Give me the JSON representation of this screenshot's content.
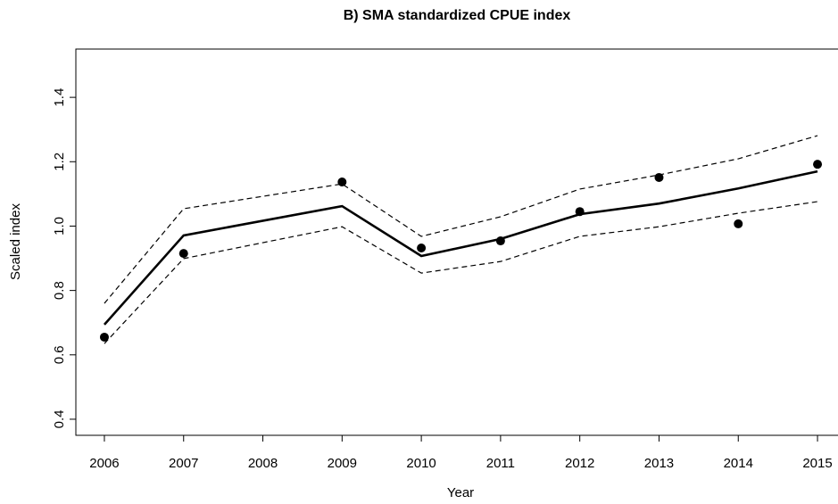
{
  "chart_data": {
    "type": "line",
    "title": "B) SMA standardized CPUE index",
    "x_label": "Year",
    "y_label": "Scaled index",
    "x": [
      2006,
      2007,
      2009,
      2010,
      2011,
      2012,
      2013,
      2014,
      2015
    ],
    "series": [
      {
        "style": "points",
        "color": "#000000",
        "values": [
          0.655,
          0.915,
          1.137,
          0.932,
          0.954,
          1.045,
          1.151,
          1.007,
          1.192
        ]
      },
      {
        "style": "solid",
        "color": "#000000",
        "values": [
          0.694,
          0.971,
          1.062,
          0.907,
          0.96,
          1.037,
          1.07,
          1.117,
          1.17
        ]
      },
      {
        "style": "dashed",
        "color": "#000000",
        "values": [
          0.76,
          1.054,
          1.131,
          0.968,
          1.029,
          1.115,
          1.159,
          1.209,
          1.281
        ]
      },
      {
        "style": "dashed",
        "color": "#000000",
        "values": [
          0.635,
          0.899,
          0.998,
          0.854,
          0.89,
          0.968,
          0.998,
          1.04,
          1.076
        ]
      }
    ],
    "xlim": [
      2005.64,
      2015.36
    ],
    "xticks": [
      2006,
      2007,
      2008,
      2009,
      2010,
      2011,
      2012,
      2013,
      2014,
      2015
    ],
    "ylim": [
      0.35,
      1.55
    ],
    "yticks": [
      0.4,
      0.6,
      0.8,
      {
        "value": 1.0,
        "label": "1.0"
      },
      1.2,
      1.4
    ]
  }
}
